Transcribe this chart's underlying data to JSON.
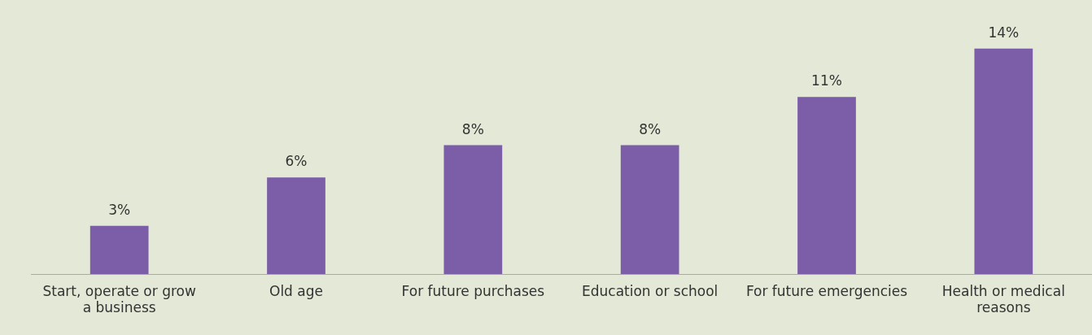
{
  "chart_data": {
    "type": "bar",
    "categories": [
      "Start, operate or grow a business",
      "Old age",
      "For future purchases",
      "Education or school",
      "For future emergencies",
      "Health or medical reasons"
    ],
    "values": [
      3,
      6,
      8,
      8,
      11,
      14
    ],
    "value_labels": [
      "3%",
      "6%",
      "8%",
      "8%",
      "11%",
      "14%"
    ],
    "color": "#7b5ea7",
    "grid": false,
    "legend": false
  }
}
